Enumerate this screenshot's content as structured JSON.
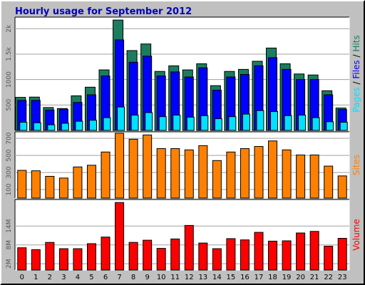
{
  "colors": {
    "frame_bg": "#c0c0c0",
    "panel_bg": "#ffffff",
    "title": "#0000c0",
    "hits": "#1b7d5d",
    "files": "#0000ff",
    "pages": "#00e0ff",
    "sites": "#ff8000",
    "volume": "#ff0000"
  },
  "chart_data": {
    "type": "bar",
    "title": "Hourly usage for September 2012",
    "categories": [
      "0",
      "1",
      "2",
      "3",
      "4",
      "5",
      "6",
      "7",
      "8",
      "9",
      "10",
      "11",
      "12",
      "13",
      "14",
      "15",
      "16",
      "17",
      "18",
      "19",
      "20",
      "21",
      "22",
      "23"
    ],
    "panels": [
      {
        "name": "usage",
        "side_label": [
          {
            "text": "Pages",
            "color": "#00e0ff"
          },
          {
            "text": " / ",
            "color": "#000000"
          },
          {
            "text": "Files",
            "color": "#0000ff"
          },
          {
            "text": " / ",
            "color": "#000000"
          },
          {
            "text": "Hits",
            "color": "#1b7d5d"
          }
        ],
        "ylim": [
          0,
          2200
        ],
        "y_ticks": [
          {
            "value": 500,
            "label": "500"
          },
          {
            "value": 1000,
            "label": "1000"
          },
          {
            "value": 1500,
            "label": "1.5k"
          },
          {
            "value": 2000,
            "label": "2k"
          }
        ],
        "series": [
          {
            "name": "Hits",
            "color": "#1b7d5d",
            "values": [
              650,
              655,
              450,
              430,
              680,
              850,
              1190,
              2170,
              1570,
              1700,
              1160,
              1270,
              1190,
              1310,
              880,
              1160,
              1200,
              1360,
              1620,
              1310,
              1110,
              1090,
              780,
              440
            ]
          },
          {
            "name": "Files",
            "color": "#0000ff",
            "values": [
              590,
              590,
              400,
              410,
              550,
              700,
              1070,
              1780,
              1340,
              1460,
              1070,
              1150,
              1050,
              1230,
              790,
              1050,
              1100,
              1270,
              1430,
              1200,
              1000,
              1000,
              700,
              410
            ]
          },
          {
            "name": "Pages",
            "color": "#00e0ff",
            "values": [
              160,
              150,
              110,
              140,
              180,
              200,
              250,
              460,
              300,
              350,
              270,
              300,
              260,
              290,
              230,
              270,
              320,
              390,
              370,
              290,
              300,
              250,
              170,
              160
            ]
          }
        ]
      },
      {
        "name": "sites",
        "side_label": [
          {
            "text": "Sites",
            "color": "#ff8000"
          }
        ],
        "ylim": [
          0,
          760
        ],
        "y_ticks": [
          {
            "value": 100,
            "label": "100"
          },
          {
            "value": 300,
            "label": "300"
          },
          {
            "value": 500,
            "label": "500"
          },
          {
            "value": 700,
            "label": "700"
          }
        ],
        "series": [
          {
            "name": "Sites",
            "color": "#ff8000",
            "values": [
              325,
              320,
              255,
              235,
              365,
              385,
              540,
              760,
              690,
              740,
              580,
              580,
              565,
              615,
              440,
              540,
              580,
              605,
              670,
              565,
              505,
              505,
              375,
              260
            ]
          }
        ]
      },
      {
        "name": "volume",
        "side_label": [
          {
            "text": "Volume",
            "color": "#ff0000"
          }
        ],
        "ylim": [
          0,
          22
        ],
        "y_ticks": [
          {
            "value": 2,
            "label": "2M"
          },
          {
            "value": 8,
            "label": "8M"
          },
          {
            "value": 14,
            "label": "14M"
          }
        ],
        "series": [
          {
            "name": "Volume",
            "color": "#ff0000",
            "values": [
              7.1,
              6.5,
              8.8,
              6.8,
              6.8,
              8.4,
              10.5,
              21.5,
              8.8,
              9.5,
              6.9,
              9.9,
              14.2,
              8.6,
              6.8,
              10.0,
              9.6,
              12.0,
              9.2,
              9.3,
              11.8,
              12.3,
              7.6,
              10.1
            ]
          }
        ]
      }
    ]
  }
}
